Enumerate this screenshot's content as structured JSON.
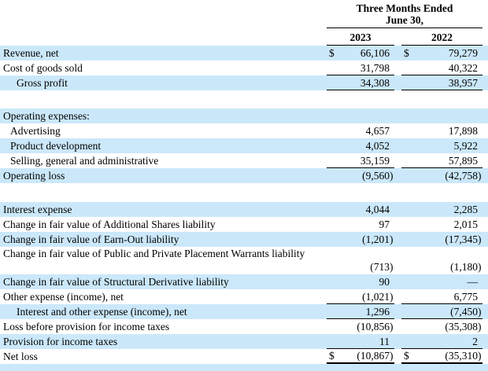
{
  "table": {
    "period_header": {
      "line1": "Three Months Ended",
      "line2": "June 30,"
    },
    "year_columns": [
      "2023",
      "2022"
    ],
    "colors": {
      "stripe_blue": "#cbe8fa",
      "rule": "#000000",
      "text": "#000000",
      "background": "#ffffff"
    },
    "rows": [
      {
        "label": "Revenue, net",
        "indent": 0,
        "dollar": true,
        "values": [
          "66,106",
          "79,279"
        ],
        "bg": "stripe",
        "rule": "none"
      },
      {
        "label": "Cost of goods sold",
        "indent": 0,
        "dollar": false,
        "values": [
          "31,798",
          "40,322"
        ],
        "bg": "plain",
        "rule": "thin"
      },
      {
        "label": "Gross profit",
        "indent": 2,
        "dollar": false,
        "values": [
          "34,308",
          "38,957"
        ],
        "bg": "stripe",
        "rule": "thin"
      },
      {
        "type": "spacer",
        "height": 23
      },
      {
        "label": "Operating expenses:",
        "indent": 0,
        "dollar": false,
        "values": [
          "",
          ""
        ],
        "bg": "stripe",
        "rule": "none"
      },
      {
        "label": "Advertising",
        "indent": 1,
        "dollar": false,
        "values": [
          "4,657",
          "17,898"
        ],
        "bg": "plain",
        "rule": "none"
      },
      {
        "label": "Product development",
        "indent": 1,
        "dollar": false,
        "values": [
          "4,052",
          "5,922"
        ],
        "bg": "stripe",
        "rule": "none"
      },
      {
        "label": "Selling, general and administrative",
        "indent": 1,
        "dollar": false,
        "values": [
          "35,159",
          "57,895"
        ],
        "bg": "plain",
        "rule": "thin"
      },
      {
        "label": "Operating loss",
        "indent": 0,
        "dollar": false,
        "values": [
          "(9,560)",
          "(42,758)"
        ],
        "bg": "stripe",
        "rule": "none"
      },
      {
        "type": "spacer",
        "height": 24
      },
      {
        "label": "Interest expense",
        "indent": 0,
        "dollar": false,
        "values": [
          "4,044",
          "2,285"
        ],
        "bg": "stripe",
        "rule": "none"
      },
      {
        "label": "Change in fair value of Additional Shares liability",
        "indent": 0,
        "dollar": false,
        "values": [
          "97",
          "2,015"
        ],
        "bg": "plain",
        "rule": "none"
      },
      {
        "label": "Change in fair value of Earn-Out liability",
        "indent": 0,
        "dollar": false,
        "values": [
          "(1,201)",
          "(17,345)"
        ],
        "bg": "stripe",
        "rule": "none"
      },
      {
        "label": "Change in fair value of Public and Private Placement Warrants liability",
        "indent": 0,
        "dollar": false,
        "values": [
          "(713)",
          "(1,180)"
        ],
        "bg": "plain",
        "rule": "none",
        "tall": true
      },
      {
        "label": "Change in fair value of Structural Derivative liability",
        "indent": 0,
        "dollar": false,
        "values": [
          "90",
          "—"
        ],
        "bg": "stripe",
        "rule": "none"
      },
      {
        "label": "Other expense (income), net",
        "indent": 0,
        "dollar": false,
        "values": [
          "(1,021)",
          "6,775"
        ],
        "bg": "plain",
        "rule": "thin"
      },
      {
        "label": "Interest and other expense (income), net",
        "indent": 2,
        "dollar": false,
        "values": [
          "1,296",
          "(7,450)"
        ],
        "bg": "stripe",
        "rule": "thin"
      },
      {
        "label": "Loss before provision for income taxes",
        "indent": 0,
        "dollar": false,
        "values": [
          "(10,856)",
          "(35,308)"
        ],
        "bg": "plain",
        "rule": "none"
      },
      {
        "label": "Provision for income taxes",
        "indent": 0,
        "dollar": false,
        "values": [
          "11",
          "2"
        ],
        "bg": "stripe",
        "rule": "thin"
      },
      {
        "label": "Net loss",
        "indent": 0,
        "dollar": true,
        "values": [
          "(10,867)",
          "(35,310)"
        ],
        "bg": "plain",
        "rule": "thick"
      }
    ]
  }
}
